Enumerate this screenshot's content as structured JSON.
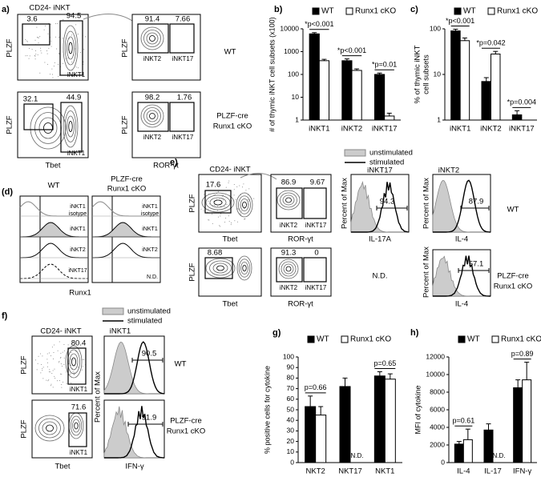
{
  "panel_a": {
    "label": "a)",
    "gate_title": "CD24- iNKT",
    "y_labels": [
      "PLZF",
      "PLZF",
      "PLZF",
      "PLZF"
    ],
    "x_labels": [
      "Tbet",
      "ROR-γt"
    ],
    "wt": "WT",
    "ko": [
      "PLZF-cre",
      "Runx1 cKO"
    ],
    "wt_gates": [
      3.6,
      94.5
    ],
    "wt_gate_name": "iNKT1",
    "wt_sub_gates": [
      91.4,
      7.66
    ],
    "wt_sub_names": [
      "iNKT2",
      "iNKT17"
    ],
    "ko_gates": [
      32.1,
      44.9
    ],
    "ko_gate_name": "iNKT1",
    "ko_sub_gates": [
      98.2,
      1.76
    ],
    "ko_sub_names": [
      "iNKT2",
      "iNKT17"
    ]
  },
  "panel_d": {
    "label": "(d)",
    "wt": "WT",
    "ko": [
      "PLZF-cre",
      "Runx1 cKO"
    ],
    "wt_rows": [
      "iNKT1",
      "isotype",
      "iNKT1",
      "iNKT2",
      "iNKT17"
    ],
    "ko_rows": [
      "iNKT1",
      "isotype",
      "iNKT1",
      "iNKT2"
    ],
    "nd": "N.D.",
    "x_label": "Runx1"
  },
  "panel_e": {
    "label": "e)",
    "legend": [
      "unstimulated",
      "stimulated"
    ],
    "gate_title": "CD24- iNKT",
    "wt_gate": 17.6,
    "wt_sub_gates": [
      86.9,
      9.67
    ],
    "wt_sub_names": [
      "iNKT2",
      "iNKT17"
    ],
    "hist_titles": [
      "iNKT17",
      "iNKT2"
    ],
    "wt_hist_values": [
      94.3,
      87.9
    ],
    "wt": "WT",
    "y_labels": [
      "PLZF",
      "PLZF"
    ],
    "hist_y_labels": [
      "Percent of Max",
      "Percent of Max",
      "Percent of Max"
    ],
    "x_labels": [
      "Tbet",
      "ROR-γt",
      "IL-17A",
      "IL-4",
      "Tbet",
      "ROR-γt",
      "IL-4"
    ],
    "ko_gate": 8.68,
    "ko_sub_gates": [
      91.3,
      0
    ],
    "ko_sub_names": [
      "iNKT2",
      "iNKT17"
    ],
    "nd": "N.D.",
    "ko_hist_value": 57.1,
    "ko": [
      "PLZF-cre",
      "Runx1 cKO"
    ]
  },
  "panel_f": {
    "label": "f)",
    "legend": [
      "unstimulated",
      "stimulated"
    ],
    "gate_title": "CD24- iNKT",
    "hist_title": "iNKT1",
    "wt_gate": 80.4,
    "wt_gate_name": "iNKT1",
    "wt_hist_value": 90.5,
    "wt": "WT",
    "ko_gate": 71.6,
    "ko_gate_name": "iNKT1",
    "ko_hist_value": 91.9,
    "ko": [
      "PLZF-cre",
      "Runx1 cKO"
    ],
    "y_labels": [
      "PLZF",
      "PLZF"
    ],
    "hist_y_label": "Percent of Max",
    "x_labels": [
      "Tbet",
      "IFN-γ"
    ]
  },
  "chart_data": [
    {
      "type": "bar",
      "label": "b)",
      "ylabel": "# of thymic iNKT cell subsets (x100)",
      "log": true,
      "categories": [
        "iNKT1",
        "iNKT2",
        "iNKT17"
      ],
      "series": [
        {
          "name": "WT",
          "color": "#000000",
          "values": [
            6000,
            400,
            100
          ],
          "errors": [
            800,
            80,
            15
          ]
        },
        {
          "name": "Runx1 cKO",
          "color": "#ffffff",
          "values": [
            400,
            150,
            1.5
          ],
          "errors": [
            60,
            25,
            0.5
          ]
        }
      ],
      "annotations": [
        "*p<0.001",
        "*p<0.001",
        "*p=0.01"
      ],
      "ylim": [
        1,
        10000
      ],
      "yticks": [
        1,
        10,
        100,
        1000,
        10000
      ]
    },
    {
      "type": "bar",
      "label": "c)",
      "ylabel": [
        "% of thymic iNKT",
        "cell subsets"
      ],
      "log": true,
      "categories": [
        "iNKT1",
        "iNKT2",
        "iNKT17"
      ],
      "series": [
        {
          "name": "WT",
          "color": "#000000",
          "values": [
            90,
            7,
            1.3
          ],
          "errors": [
            8,
            1.5,
            0.3
          ]
        },
        {
          "name": "Runx1 cKO",
          "color": "#ffffff",
          "values": [
            55,
            28,
            1
          ],
          "errors": [
            8,
            4,
            0
          ]
        }
      ],
      "annotations": [
        "*p<0.001",
        "*p=0.042",
        "*p=0.004"
      ],
      "ylim": [
        1,
        100
      ],
      "yticks": [
        1,
        10,
        100
      ]
    },
    {
      "type": "bar",
      "label": "g)",
      "ylabel": "% positive cells for cytokine",
      "log": false,
      "categories": [
        "NKT2",
        "NKT17",
        "NKT1"
      ],
      "series": [
        {
          "name": "WT",
          "color": "#000000",
          "values": [
            53,
            72,
            82
          ],
          "errors": [
            10,
            8,
            4
          ]
        },
        {
          "name": "Runx1 cKO",
          "color": "#ffffff",
          "values": [
            45,
            null,
            79
          ],
          "errors": [
            8,
            null,
            5
          ]
        }
      ],
      "annotations": [
        "p=0.66",
        null,
        "p=0.65"
      ],
      "nd_label": "N.D.",
      "ylim": [
        0,
        100
      ],
      "yticks": [
        0,
        10,
        20,
        30,
        40,
        50,
        60,
        70,
        80,
        90,
        100
      ]
    },
    {
      "type": "bar",
      "label": "h)",
      "ylabel": "MFI of cytokine",
      "log": false,
      "categories": [
        "IL-4",
        "IL-17",
        "IFN-γ"
      ],
      "series": [
        {
          "name": "WT",
          "color": "#000000",
          "values": [
            2100,
            3700,
            8500
          ],
          "errors": [
            300,
            700,
            900
          ]
        },
        {
          "name": "Runx1 cKO",
          "color": "#ffffff",
          "values": [
            2600,
            null,
            9400
          ],
          "errors": [
            1200,
            null,
            2000
          ]
        }
      ],
      "annotations": [
        "p=0.61",
        null,
        "p=0.89"
      ],
      "nd_label": "N.D.",
      "ylim": [
        0,
        12000
      ],
      "yticks": [
        0,
        2000,
        4000,
        6000,
        8000,
        10000,
        12000
      ]
    }
  ]
}
